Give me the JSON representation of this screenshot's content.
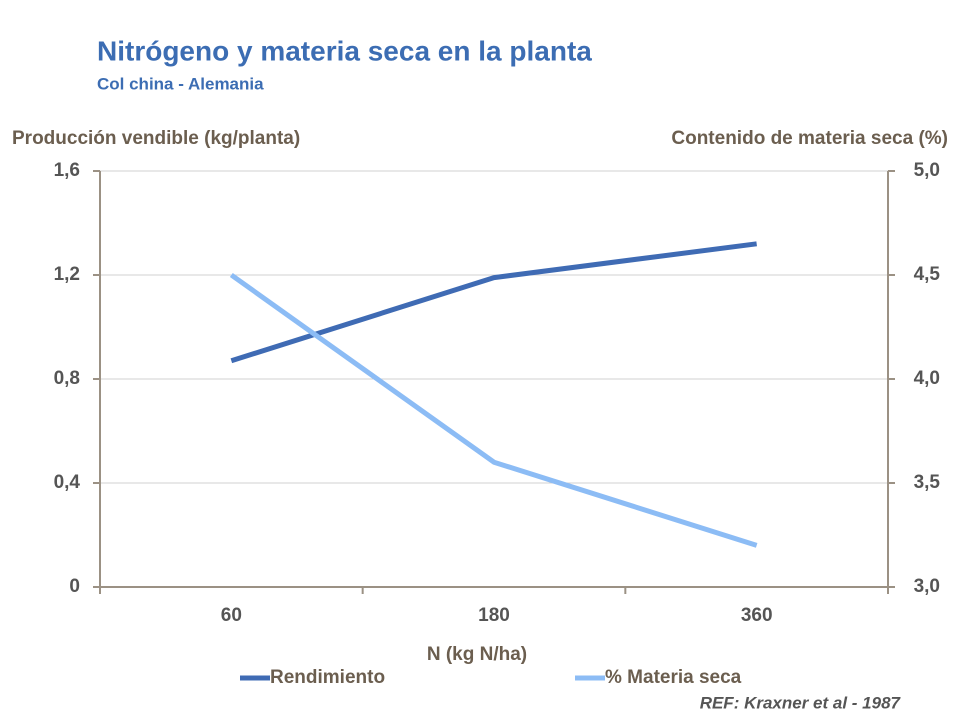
{
  "chart_data": {
    "type": "line",
    "title": "Nitrógeno y materia seca en la planta",
    "subtitle": "Col china - Alemania",
    "x_label": "N (kg N/ha)",
    "y_label": "Producción vendible (kg/planta)",
    "y2_label": "Contenido de materia seca (%)",
    "note": "REF: Kraxner et al - 1987",
    "categories": [
      "60",
      "180",
      "360"
    ],
    "series": [
      {
        "name": "Rendimiento",
        "color": "#3f6bb4",
        "values": [
          0.87,
          1.19,
          1.32
        ]
      },
      {
        "name": "% Materia seca",
        "color": "#8cbcf5",
        "values": [
          4.5,
          3.6,
          3.2
        ],
        "axis": "y2"
      }
    ],
    "ylim": [
      0,
      1.6
    ],
    "yticks": [
      0,
      {
        "value": 0.4,
        "label": "0,4"
      },
      {
        "value": 0.8,
        "label": "0,8"
      },
      {
        "value": 1.2,
        "label": "1,2"
      },
      {
        "value": 1.6,
        "label": "1,6"
      }
    ],
    "y2lim": [
      3.0,
      5.0
    ],
    "y2ticks": [
      {
        "value": 3.0,
        "label": "3,0"
      },
      {
        "value": 3.5,
        "label": "3,5"
      },
      {
        "value": 4.0,
        "label": "4,0"
      },
      {
        "value": 4.5,
        "label": "4,5"
      },
      {
        "value": 5.0,
        "label": "5,0"
      }
    ],
    "grid": true,
    "legend": "bottom"
  }
}
